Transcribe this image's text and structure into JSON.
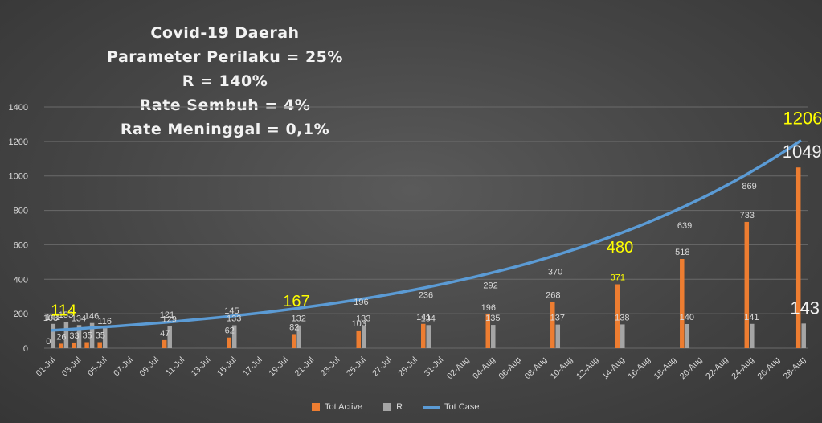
{
  "title_lines": [
    "Covid-19 Daerah",
    "Parameter Perilaku = 25%",
    "R = 140%",
    "Rate Sembuh = 4%",
    "Rate Meninggal = 0,1%"
  ],
  "colors": {
    "tot_active": "#ed7d31",
    "r": "#a5a5a5",
    "tot_case": "#5b9bd5",
    "highlight": "#ffff00"
  },
  "chart_data": {
    "type": "bar",
    "title": "",
    "ylim": [
      0,
      1400
    ],
    "yticks": [
      0,
      200,
      400,
      600,
      800,
      1000,
      1200,
      1400
    ],
    "xtick_labels": [
      "01-Jul",
      "03-Jul",
      "05-Jul",
      "07-Jul",
      "09-Jul",
      "11-Jul",
      "13-Jul",
      "15-Jul",
      "17-Jul",
      "19-Jul",
      "21-Jul",
      "23-Jul",
      "25-Jul",
      "27-Jul",
      "29-Jul",
      "31-Jul",
      "02-Aug",
      "04-Aug",
      "06-Aug",
      "08-Aug",
      "10-Aug",
      "12-Aug",
      "14-Aug",
      "16-Aug",
      "18-Aug",
      "20-Aug",
      "22-Aug",
      "24-Aug",
      "26-Aug",
      "28-Aug"
    ],
    "legend": [
      "Tot Active",
      "R",
      "Tot Case"
    ],
    "legend_position": "bottom",
    "series": [
      {
        "name": "Tot Active",
        "kind": "bar",
        "points": [
          {
            "day": 1,
            "v": 0,
            "label": "0"
          },
          {
            "day": 2,
            "v": 26,
            "label": "26"
          },
          {
            "day": 3,
            "v": 33,
            "label": "33"
          },
          {
            "day": 4,
            "v": 35,
            "label": "35"
          },
          {
            "day": 5,
            "v": 35,
            "label": "35"
          },
          {
            "day": 10,
            "v": 47,
            "label": "47"
          },
          {
            "day": 15,
            "v": 62,
            "label": "62"
          },
          {
            "day": 20,
            "v": 82,
            "label": "82"
          },
          {
            "day": 25,
            "v": 103,
            "label": "103"
          },
          {
            "day": 30,
            "v": 141,
            "label": "141"
          },
          {
            "day": 35,
            "v": 196,
            "label": "196"
          },
          {
            "day": 40,
            "v": 268,
            "label": "268"
          },
          {
            "day": 45,
            "v": 371,
            "label": "371",
            "highlight": true
          },
          {
            "day": 50,
            "v": 518,
            "label": "518"
          },
          {
            "day": 55,
            "v": 733,
            "label": "733"
          },
          {
            "day": 59,
            "v": 1049,
            "label": "1049",
            "big": true
          }
        ]
      },
      {
        "name": "R",
        "kind": "bar",
        "points": [
          {
            "day": 1,
            "v": 141,
            "label": "141"
          },
          {
            "day": 2,
            "v": 153,
            "label": "153"
          },
          {
            "day": 3,
            "v": 134,
            "label": "134"
          },
          {
            "day": 4,
            "v": 146,
            "label": "146"
          },
          {
            "day": 5,
            "v": 116,
            "label": "116"
          },
          {
            "day": 10,
            "v": 129,
            "label": "129"
          },
          {
            "day": 15,
            "v": 133,
            "label": "133"
          },
          {
            "day": 20,
            "v": 132,
            "label": "132"
          },
          {
            "day": 25,
            "v": 133,
            "label": "133"
          },
          {
            "day": 30,
            "v": 134,
            "label": "134"
          },
          {
            "day": 35,
            "v": 135,
            "label": "135"
          },
          {
            "day": 40,
            "v": 137,
            "label": "137"
          },
          {
            "day": 45,
            "v": 138,
            "label": "138"
          },
          {
            "day": 50,
            "v": 140,
            "label": "140"
          },
          {
            "day": 55,
            "v": 141,
            "label": "141"
          },
          {
            "day": 59,
            "v": 143,
            "label": "143",
            "big": true
          }
        ]
      },
      {
        "name": "Tot Case",
        "kind": "line",
        "points": [
          {
            "day": 1,
            "v": 103,
            "label": "103"
          },
          {
            "day": 2,
            "v": 114,
            "label": "114",
            "highlight": true
          },
          {
            "day": 10,
            "v": 121,
            "label": "121"
          },
          {
            "day": 15,
            "v": 145,
            "label": "145"
          },
          {
            "day": 20,
            "v": 167,
            "label": "167",
            "highlight": true
          },
          {
            "day": 25,
            "v": 196,
            "label": "196"
          },
          {
            "day": 30,
            "v": 236,
            "label": "236"
          },
          {
            "day": 35,
            "v": 292,
            "label": "292"
          },
          {
            "day": 40,
            "v": 370,
            "label": "370"
          },
          {
            "day": 45,
            "v": 480,
            "label": "480",
            "highlight": true
          },
          {
            "day": 50,
            "v": 639,
            "label": "639"
          },
          {
            "day": 55,
            "v": 869,
            "label": "869"
          },
          {
            "day": 59,
            "v": 1206,
            "label": "1206",
            "highlight": true
          }
        ]
      }
    ]
  }
}
